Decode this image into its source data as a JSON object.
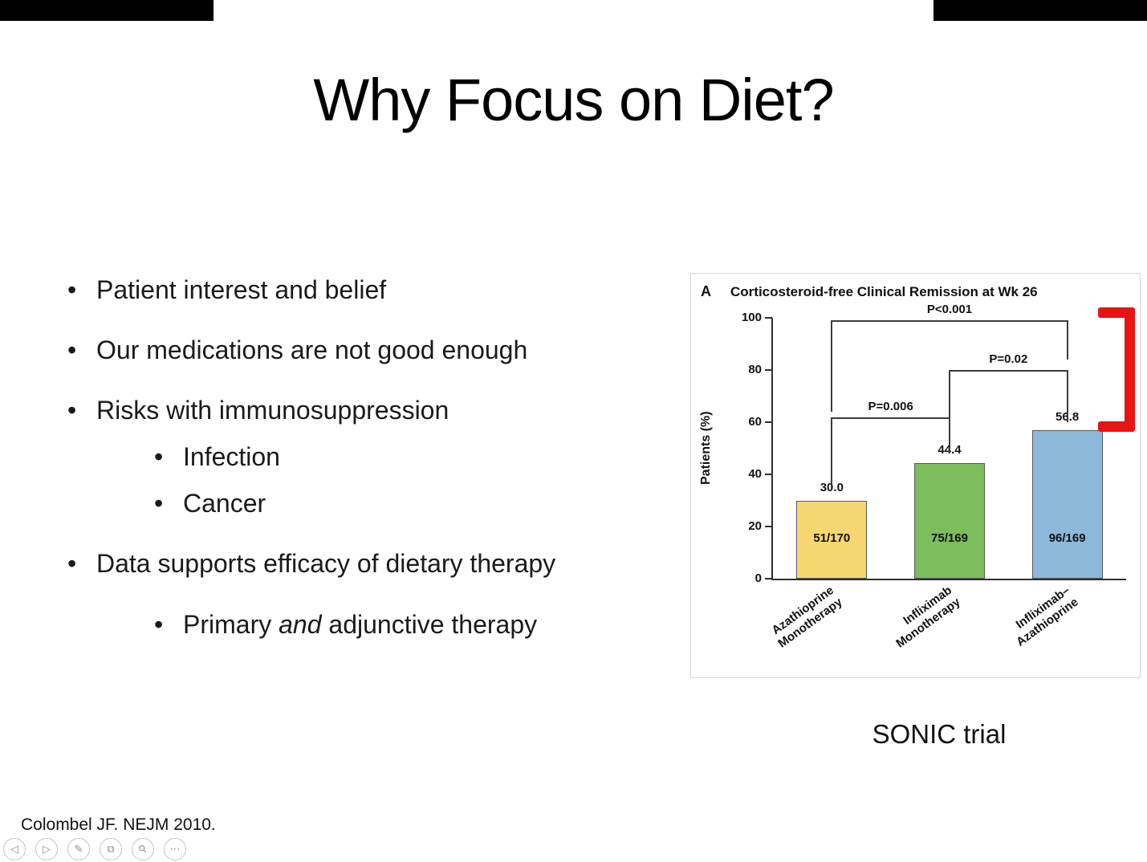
{
  "slide": {
    "title": "Why Focus on Diet?",
    "bullets": [
      {
        "level": 1,
        "text": "Patient interest and belief"
      },
      {
        "level": 1,
        "text": "Our medications are not good enough"
      },
      {
        "level": 1,
        "text": "Risks with immunosuppression"
      },
      {
        "level": 2,
        "text": "Infection"
      },
      {
        "level": 2,
        "text": "Cancer"
      },
      {
        "level": 1,
        "text": "Data supports efficacy of dietary therapy"
      },
      {
        "level": 2,
        "prefix": "Primary ",
        "italic": "and",
        "suffix": " adjunctive therapy"
      }
    ],
    "caption": "SONIC trial",
    "citation": "Colombel JF.  NEJM 2010."
  },
  "chart_data": {
    "type": "bar",
    "panel_label": "A",
    "title": "Corticosteroid-free Clinical Remission at Wk 26",
    "ylabel": "Patients (%)",
    "ylim": [
      0,
      100
    ],
    "yticks": [
      0,
      20,
      40,
      60,
      80,
      100
    ],
    "categories": [
      "Azathioprine\nMonotherapy",
      "Infliximab\nMonotherapy",
      "Infliximab–\nAzathioprine"
    ],
    "values": [
      30.0,
      44.4,
      56.8
    ],
    "value_labels": [
      "30.0",
      "44.4",
      "56.8"
    ],
    "bar_labels": [
      "51/170",
      "75/169",
      "96/169"
    ],
    "bar_colors": [
      "#f5d671",
      "#7cbd5c",
      "#8cb8da"
    ],
    "comparisons": [
      {
        "from": 0,
        "to": 1,
        "label": "P=0.006",
        "height_pct": 62,
        "drop_to_pct": [
          34,
          48
        ]
      },
      {
        "from": 1,
        "to": 2,
        "label": "P=0.02",
        "height_pct": 80,
        "drop_to_pct": [
          48,
          60
        ]
      },
      {
        "from": 0,
        "to": 2,
        "label": "P<0.001",
        "height_pct": 99,
        "drop_to_pct": [
          64,
          84
        ]
      }
    ],
    "annotation": {
      "type": "red-bracket",
      "color": "#e81313"
    },
    "legend": null,
    "grid": false
  },
  "controls": {
    "items": [
      {
        "name": "previous-slide",
        "glyph": "◁"
      },
      {
        "name": "next-slide",
        "glyph": "▷"
      },
      {
        "name": "pen",
        "glyph": "✎"
      },
      {
        "name": "copy",
        "glyph": "⧉"
      },
      {
        "name": "zoom",
        "glyph": "⚲"
      },
      {
        "name": "more",
        "glyph": "⋯"
      }
    ]
  }
}
